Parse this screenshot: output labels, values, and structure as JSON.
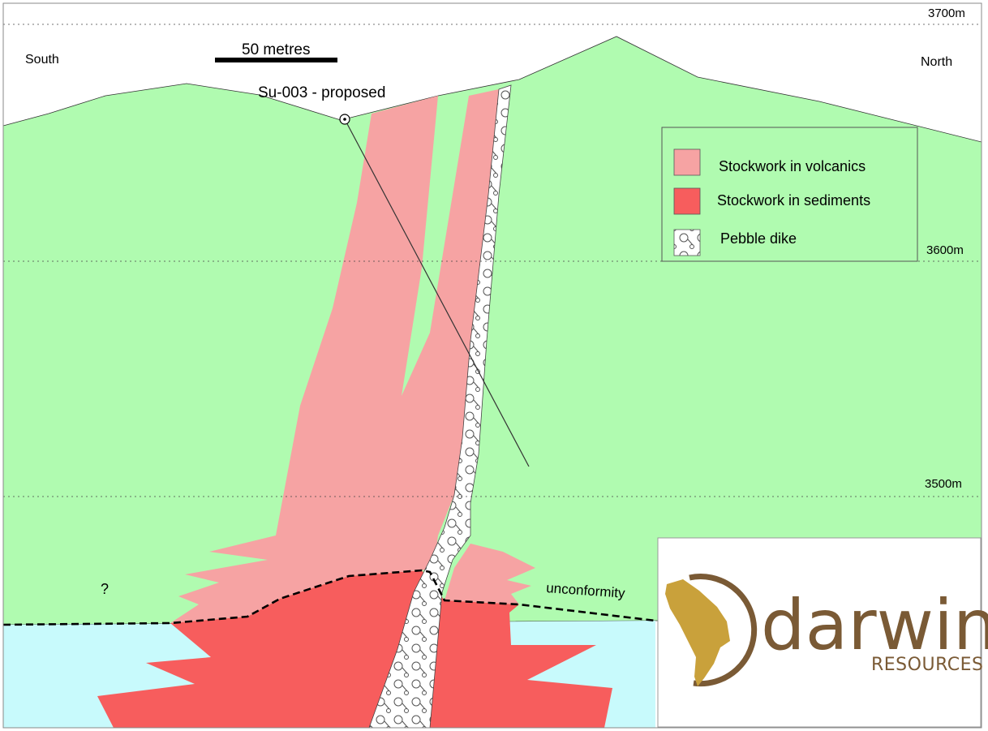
{
  "labels": {
    "elevation_top": "3700m",
    "elevation_mid": "3600m",
    "elevation_low": "3500m",
    "south": "South",
    "north": "North",
    "scale": "50 metres",
    "drillhole": "Su-003 - proposed",
    "question": "?",
    "unconformity": "unconformity"
  },
  "legend": {
    "items": [
      {
        "label": "Stockwork in volcanics",
        "color": "#f6a3a3"
      },
      {
        "label": "Stockwork in sediments",
        "color": "#f75d5d"
      },
      {
        "label": "Pebble dike",
        "pattern": "circles"
      }
    ]
  },
  "logo": {
    "wordmark": "darwin",
    "sub": "RESOURCES",
    "color": "#7a5a35",
    "accent": "#c9a13b"
  },
  "colors": {
    "volcanics_host": "#b0fbb0",
    "sediments_host": "#c8fafc",
    "stockwork_volcanics": "#f6a3a3",
    "stockwork_sediments": "#f75d5d"
  }
}
